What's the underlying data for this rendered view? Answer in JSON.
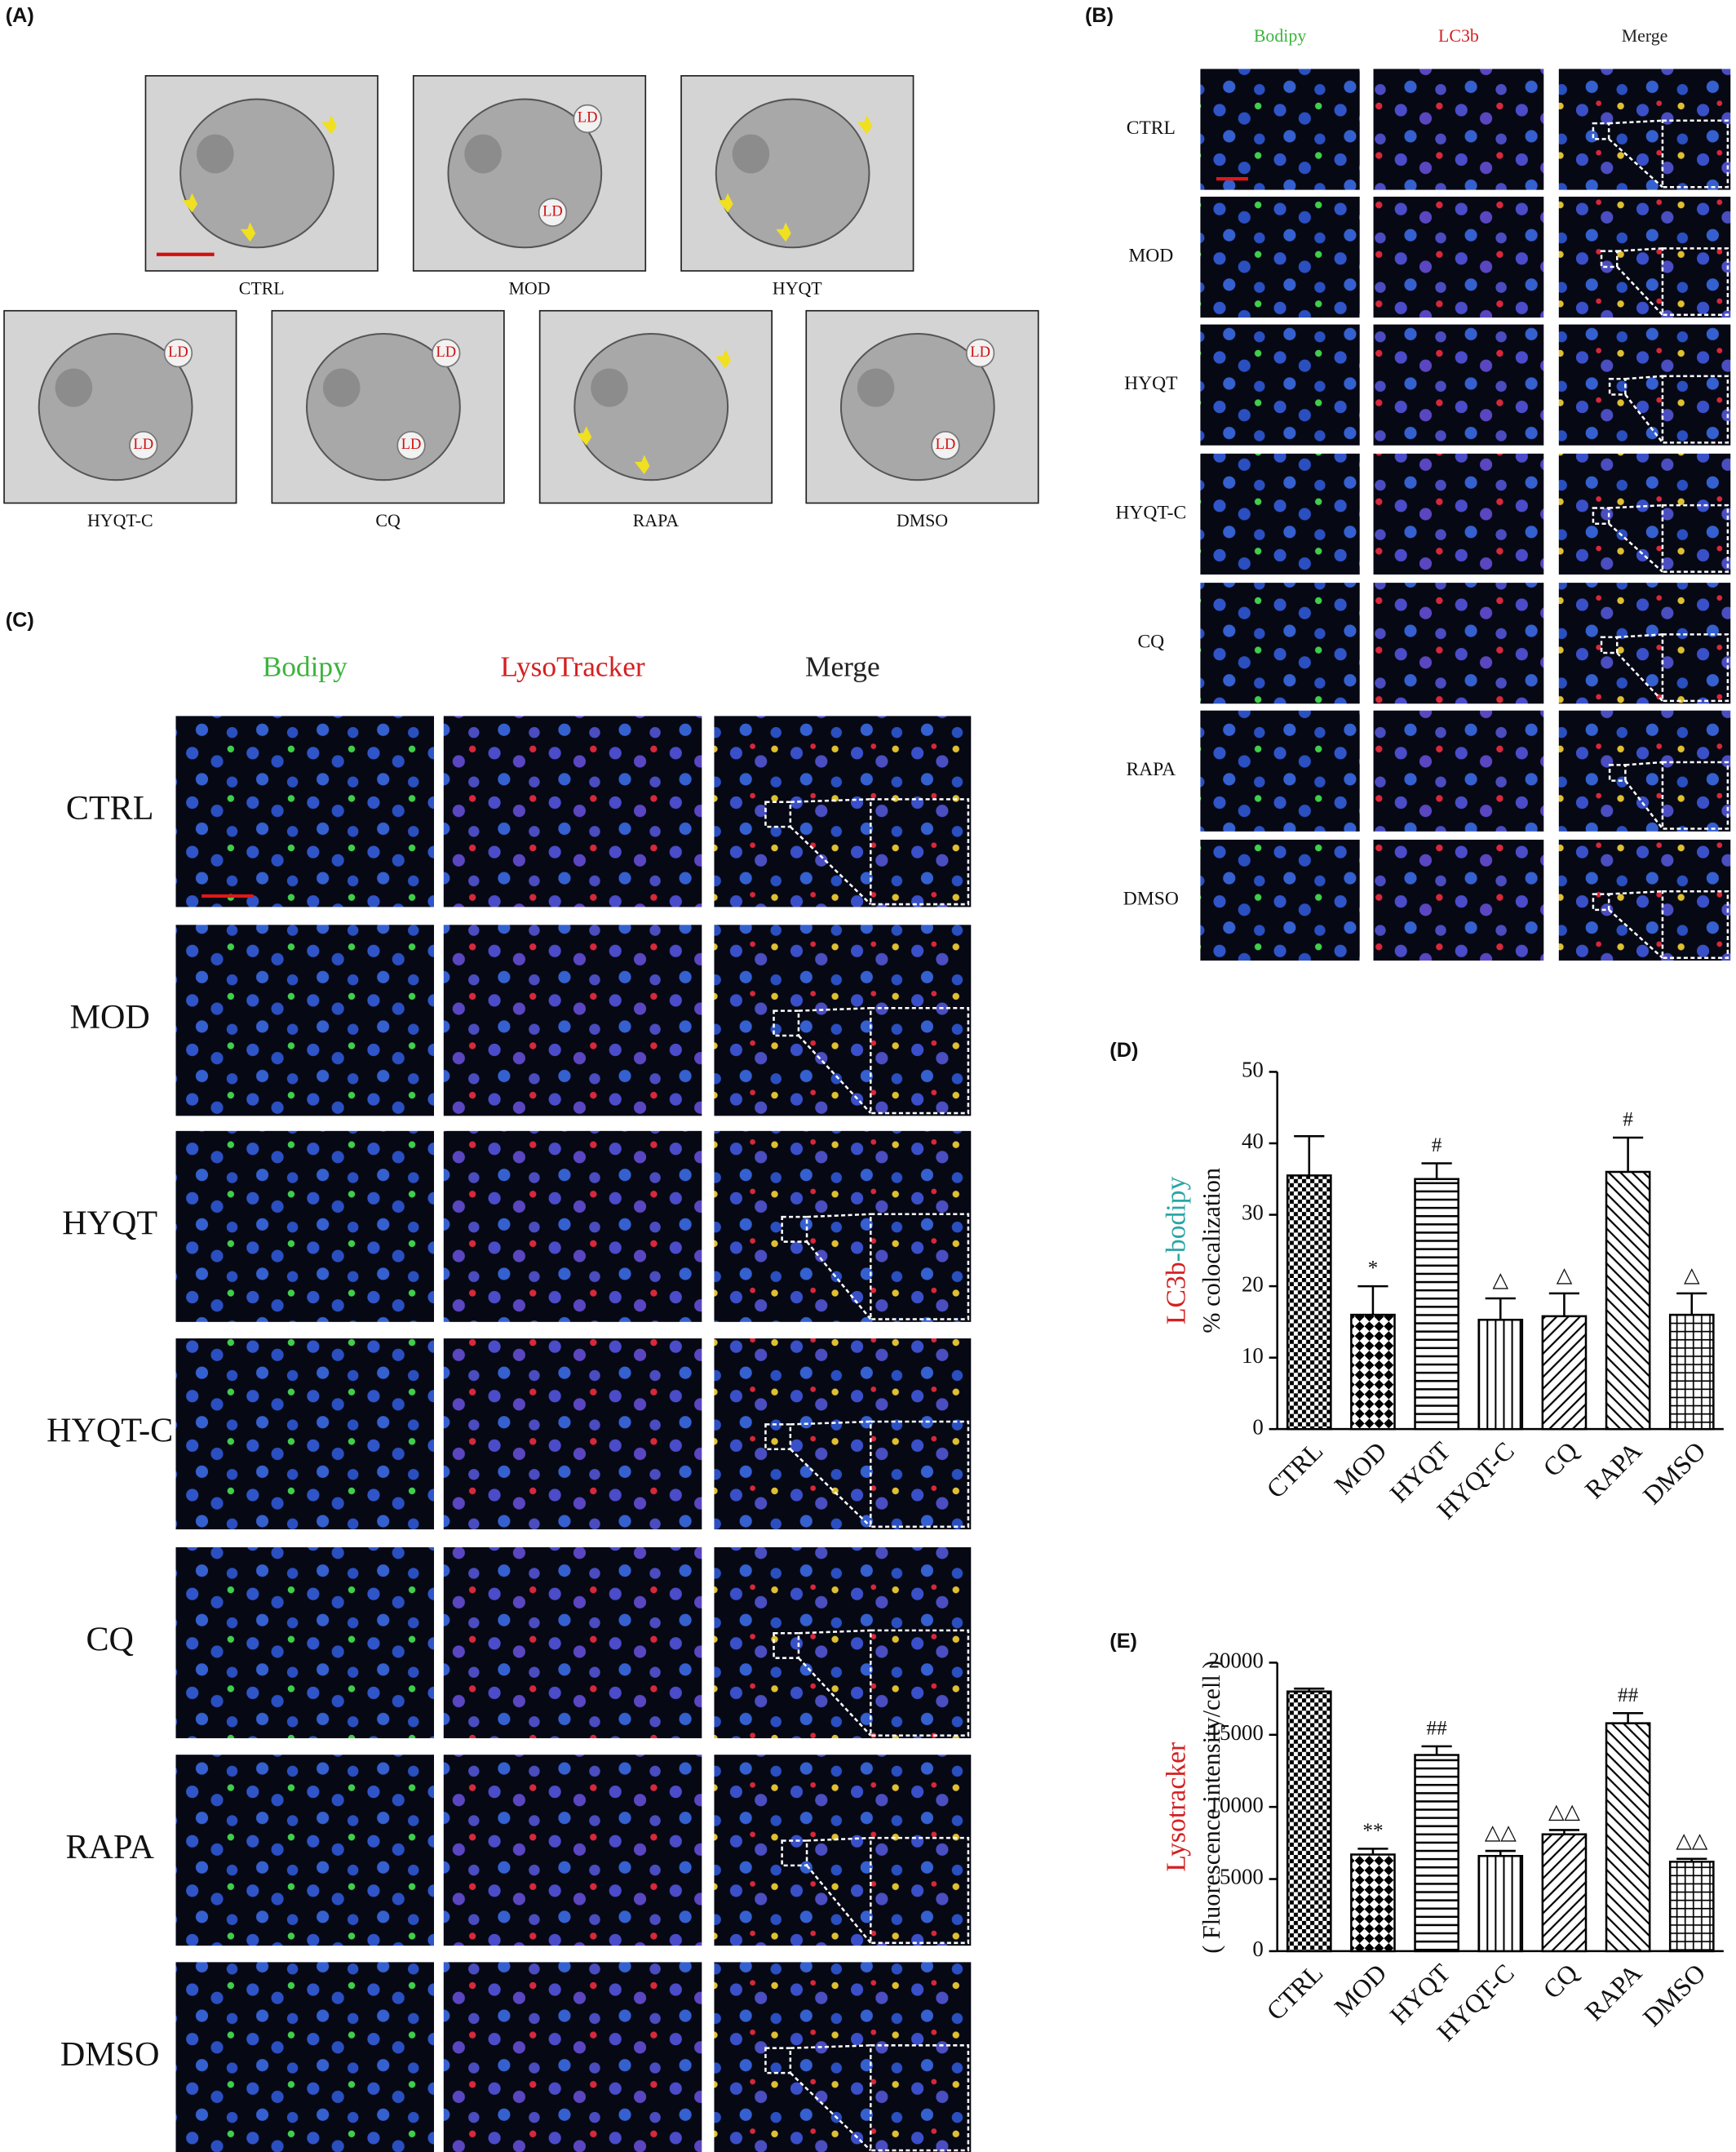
{
  "panel_a": {
    "label": "(A)",
    "images": [
      "CTRL",
      "MOD",
      "HYQT",
      "HYQT-C",
      "CQ",
      "RAPA",
      "DMSO"
    ],
    "annotation": "LD"
  },
  "panel_b": {
    "label": "(B)",
    "columns": [
      "Bodipy",
      "LC3b",
      "Merge"
    ],
    "column_colors": [
      "#3cb43c",
      "#d42020",
      "#222222"
    ],
    "rows": [
      "CTRL",
      "MOD",
      "HYQT",
      "HYQT-C",
      "CQ",
      "RAPA",
      "DMSO"
    ]
  },
  "panel_c": {
    "label": "(C)",
    "columns": [
      "Bodipy",
      "LysoTracker",
      "Merge"
    ],
    "column_colors": [
      "#3cb43c",
      "#d42020",
      "#222222"
    ],
    "rows": [
      "CTRL",
      "MOD",
      "HYQT",
      "HYQT-C",
      "CQ",
      "RAPA",
      "DMSO"
    ]
  },
  "chart_data": [
    {
      "type": "bar",
      "panel_label": "(D)",
      "y_label_parts": [
        {
          "text": "LC3b",
          "color": "#d42020"
        },
        {
          "text": "-bodipy",
          "color": "#2aa5a5"
        }
      ],
      "y_label_line2": "% colocalization",
      "categories": [
        "CTRL",
        "MOD",
        "HYQT",
        "HYQT-C",
        "CQ",
        "RAPA",
        "DMSO"
      ],
      "values": [
        35.5,
        16,
        35,
        15.3,
        15.8,
        36,
        16
      ],
      "errors": [
        5.5,
        4,
        2.2,
        3,
        3.2,
        4.8,
        3
      ],
      "annotations": [
        null,
        "*",
        "#",
        "△",
        "△",
        "#",
        "△"
      ],
      "patterns": [
        "checker-fine",
        "checker",
        "horizontal",
        "vertical",
        "diagonal-up",
        "diagonal-down",
        "grid"
      ],
      "color": "#000000",
      "ylim": [
        0,
        50
      ],
      "yticks": [
        0,
        10,
        20,
        30,
        40,
        50
      ]
    },
    {
      "type": "bar",
      "panel_label": "(E)",
      "y_label_parts": [
        {
          "text": "Lysotracker",
          "color": "#d42020"
        }
      ],
      "y_label_line2": "( Fluorescence intensity/cell )",
      "categories": [
        "CTRL",
        "MOD",
        "HYQT",
        "HYQT-C",
        "CQ",
        "RAPA",
        "DMSO"
      ],
      "values": [
        18000,
        6700,
        13600,
        6600,
        8100,
        15800,
        6200
      ],
      "errors": [
        200,
        400,
        600,
        350,
        300,
        700,
        200
      ],
      "annotations": [
        null,
        "**",
        "##",
        "△△",
        "△△",
        "##",
        "△△"
      ],
      "patterns": [
        "checker-fine",
        "checker",
        "horizontal",
        "vertical",
        "diagonal-up",
        "diagonal-down",
        "grid"
      ],
      "color": "#000000",
      "ylim": [
        0,
        20000
      ],
      "yticks": [
        0,
        5000,
        10000,
        15000,
        20000
      ]
    }
  ]
}
